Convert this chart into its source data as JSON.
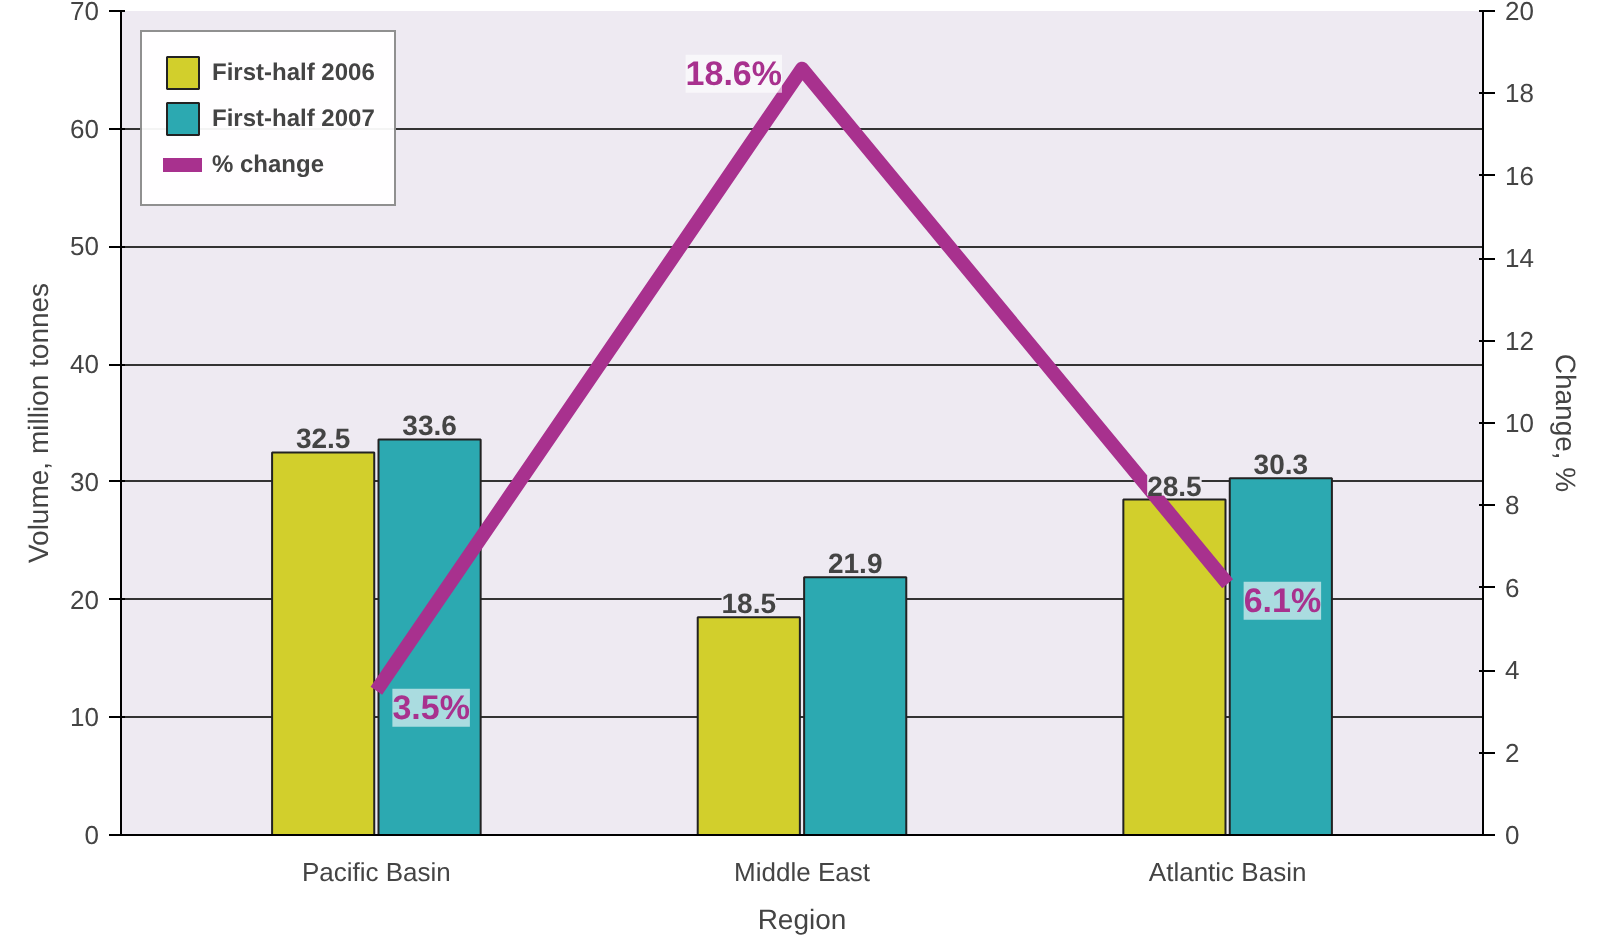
{
  "chart_data": {
    "type": "bar",
    "xlabel": "Region",
    "ylabel": "Volume, million tonnes",
    "y2label": "Change, %",
    "categories": [
      "Pacific Basin",
      "Middle East",
      "Atlantic Basin"
    ],
    "series": [
      {
        "name": "First-half 2006",
        "color": "#d2cf2c",
        "values": [
          32.5,
          18.5,
          28.5
        ],
        "value_labels": [
          "32.5",
          "18.5",
          "28.5"
        ]
      },
      {
        "name": "First-half 2007",
        "color": "#2ca9b1",
        "values": [
          33.6,
          21.9,
          30.3
        ],
        "value_labels": [
          "33.6",
          "21.9",
          "30.3"
        ]
      },
      {
        "name": "% change",
        "type": "line",
        "axis": "y2",
        "color": "#a8318e",
        "values": [
          3.5,
          18.6,
          6.1
        ],
        "value_labels": [
          "3.5%",
          "18.6%",
          "6.1%"
        ]
      }
    ],
    "ylim": [
      0,
      70
    ],
    "yticks": [
      0,
      10,
      20,
      30,
      40,
      50,
      60,
      70
    ],
    "y2lim": [
      0,
      20
    ],
    "y2ticks": [
      0,
      2,
      4,
      6,
      8,
      10,
      12,
      14,
      16,
      18,
      20
    ],
    "grid": "y",
    "legend": "top left",
    "marker": "none",
    "line_style": "solid"
  }
}
